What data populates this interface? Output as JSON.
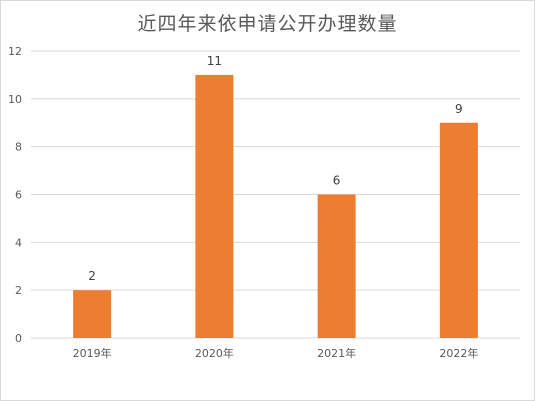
{
  "chart_data": {
    "type": "bar",
    "title": "近四年来依申请公开办理数量",
    "categories": [
      "2019年",
      "2020年",
      "2021年",
      "2022年"
    ],
    "series": [
      {
        "values": [
          2,
          11,
          6,
          9
        ]
      }
    ],
    "data_labels": [
      "2",
      "11",
      "6",
      "9"
    ],
    "ylim": [
      0,
      12
    ],
    "yticks": [
      0,
      2,
      4,
      6,
      8,
      10,
      12
    ],
    "ytick_labels": [
      "0",
      "2",
      "4",
      "6",
      "8",
      "10",
      "12"
    ],
    "grid": true,
    "bar_color": "#ED7D31",
    "grid_color": "#d9d9d9"
  }
}
